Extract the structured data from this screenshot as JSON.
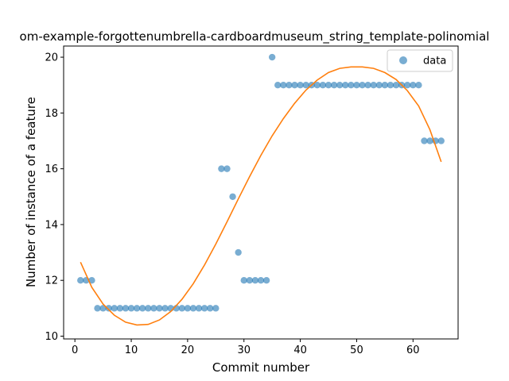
{
  "chart_data": {
    "type": "scatter",
    "title": "om-example-forgottenumbrella-cardboardmuseum_string_template-polinomial",
    "xlabel": "Commit number",
    "ylabel": "Number of instance of a feature",
    "xlim": [
      -2,
      68
    ],
    "ylim": [
      9.9,
      20.4
    ],
    "xticks": [
      0,
      10,
      20,
      30,
      40,
      50,
      60
    ],
    "yticks": [
      10,
      12,
      14,
      16,
      18,
      20
    ],
    "grid": false,
    "legend_position": "top-right",
    "series": [
      {
        "name": "data",
        "kind": "scatter",
        "color": "#1f77b4",
        "x": [
          1,
          2,
          3,
          4,
          5,
          6,
          7,
          8,
          9,
          10,
          11,
          12,
          13,
          14,
          15,
          16,
          17,
          18,
          19,
          20,
          21,
          22,
          23,
          24,
          25,
          26,
          27,
          28,
          29,
          30,
          31,
          32,
          33,
          34,
          35,
          36,
          37,
          38,
          39,
          40,
          41,
          42,
          43,
          44,
          45,
          46,
          47,
          48,
          49,
          50,
          51,
          52,
          53,
          54,
          55,
          56,
          57,
          58,
          59,
          60,
          61,
          62,
          63,
          64,
          65
        ],
        "y": [
          12,
          12,
          12,
          11,
          11,
          11,
          11,
          11,
          11,
          11,
          11,
          11,
          11,
          11,
          11,
          11,
          11,
          11,
          11,
          11,
          11,
          11,
          11,
          11,
          11,
          16,
          16,
          15,
          13,
          12,
          12,
          12,
          12,
          12,
          20,
          19,
          19,
          19,
          19,
          19,
          19,
          19,
          19,
          19,
          19,
          19,
          19,
          19,
          19,
          19,
          19,
          19,
          19,
          19,
          19,
          19,
          19,
          19,
          19,
          19,
          19,
          17,
          17,
          17,
          17
        ]
      },
      {
        "kind": "line",
        "color": "#ff7f0e",
        "x": [
          1,
          3,
          5,
          7,
          9,
          11,
          13,
          15,
          17,
          19,
          21,
          23,
          25,
          27,
          29,
          31,
          33,
          35,
          37,
          39,
          41,
          43,
          45,
          47,
          49,
          51,
          53,
          55,
          57,
          59,
          61,
          63,
          65
        ],
        "y": [
          12.65,
          11.75,
          11.15,
          10.75,
          10.5,
          10.4,
          10.42,
          10.58,
          10.88,
          11.32,
          11.88,
          12.55,
          13.3,
          14.1,
          14.92,
          15.72,
          16.48,
          17.18,
          17.8,
          18.35,
          18.82,
          19.18,
          19.45,
          19.6,
          19.65,
          19.65,
          19.6,
          19.45,
          19.2,
          18.8,
          18.25,
          17.4,
          16.25
        ]
      }
    ]
  }
}
